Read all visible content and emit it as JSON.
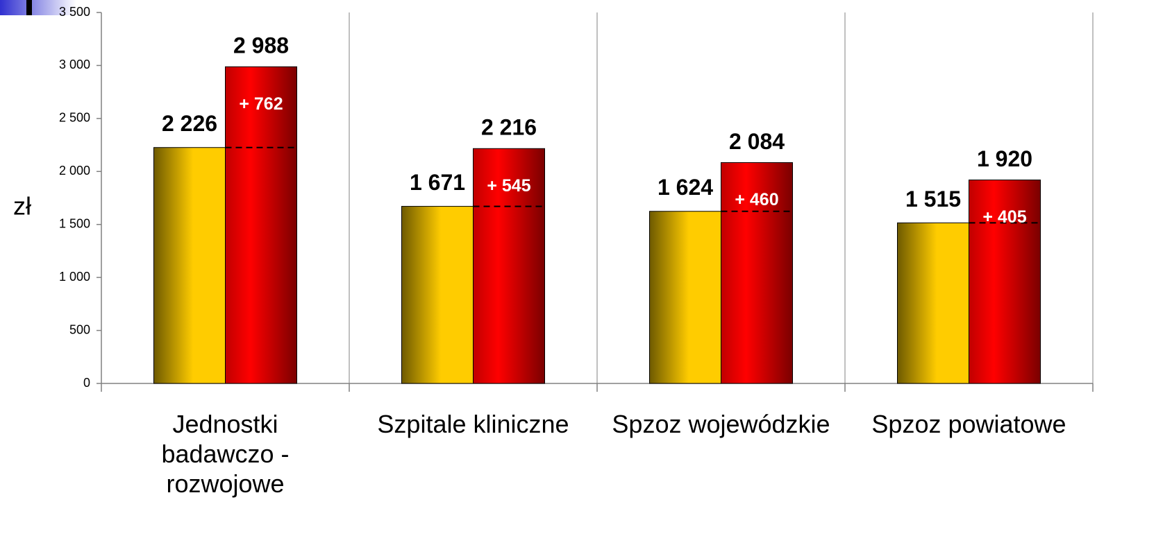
{
  "chart_data": {
    "type": "bar",
    "y_label": "zł",
    "categories": [
      "Jednostki badawczo - rozwojowe",
      "Szpitale kliniczne",
      "Spzoz wojewódzkie",
      "Spzoz powiatowe"
    ],
    "series": [
      {
        "color": "#ffcc00",
        "values": [
          2226,
          1671,
          1624,
          1515
        ],
        "value_labels": [
          "2 226",
          "1 671",
          "1 624",
          "1 515"
        ]
      },
      {
        "color": "#ff0000",
        "values": [
          2988,
          2216,
          2084,
          1920
        ],
        "value_labels": [
          "2 988",
          "2 216",
          "2 084",
          "1 920"
        ]
      }
    ],
    "differences": {
      "values": [
        762,
        545,
        460,
        405
      ],
      "value_labels": [
        "+ 762",
        "+ 545",
        "+ 460",
        "+ 405"
      ]
    },
    "ylim": [
      0,
      3500
    ],
    "yticks": [
      0,
      500,
      {
        "value": 1000,
        "label": "1 000"
      },
      {
        "value": 1500,
        "label": "1 500"
      },
      {
        "value": 2000,
        "label": "2 000"
      },
      {
        "value": 2500,
        "label": "2 500"
      },
      {
        "value": 3000,
        "label": "3 000"
      },
      {
        "value": 3500,
        "label": "3 500"
      }
    ]
  }
}
